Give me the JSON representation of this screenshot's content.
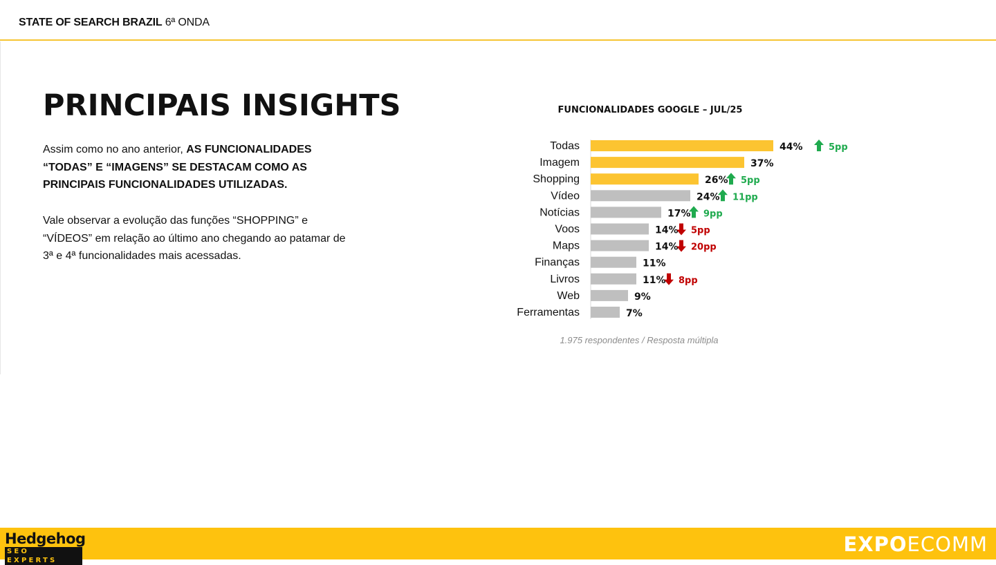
{
  "header": {
    "brand_bold": "STATE OF SEARCH BRAZIL",
    "brand_rest": "6ª ONDA"
  },
  "page": {
    "title": "PRINCIPAIS INSIGHTS"
  },
  "insights": {
    "p1_normal": "Assim como no ano anterior, ",
    "p1_bold": "AS FUNCIONALIDADES “TODAS” E “IMAGENS” SE DESTACAM COMO AS PRINCIPAIS FUNCIONALIDADES UTILIZADAS.",
    "p2": "Vale observar a evolução das funções “SHOPPING” e “VÍDEOS” em relação ao último ano chegando ao patamar de 3ª e 4ª funcionalidades mais acessadas."
  },
  "chart_data": {
    "type": "bar",
    "orientation": "horizontal",
    "title": "FUNCIONALIDADES GOOGLE – JUL/25",
    "categories": [
      "Todas",
      "Imagem",
      "Shopping",
      "Vídeo",
      "Notícias",
      "Voos",
      "Maps",
      "Finanças",
      "Livros",
      "Web",
      "Ferramentas"
    ],
    "values": [
      44,
      37,
      26,
      24,
      17,
      14,
      14,
      11,
      11,
      9,
      7
    ],
    "value_labels": [
      "44%",
      "37%",
      "26%",
      "24%",
      "17%",
      "14%",
      "14%",
      "11%",
      "11%",
      "9%",
      "7%"
    ],
    "highlighted": [
      true,
      true,
      true,
      false,
      false,
      false,
      false,
      false,
      false,
      false,
      false
    ],
    "changes": [
      {
        "direction": "up",
        "label": "5pp"
      },
      null,
      {
        "direction": "up",
        "label": "5pp"
      },
      {
        "direction": "up",
        "label": "11pp"
      },
      {
        "direction": "up",
        "label": "9pp"
      },
      {
        "direction": "down",
        "label": "5pp"
      },
      {
        "direction": "down",
        "label": "20pp"
      },
      null,
      {
        "direction": "down",
        "label": "8pp"
      },
      null,
      null
    ],
    "colors": {
      "highlight": "#fcc431",
      "default": "#bfbfbf",
      "up": "#1faa4e",
      "down": "#c00000"
    },
    "xlim": [
      0,
      44
    ],
    "grid": false,
    "note": "1.975 respondentes / Resposta múltipla"
  },
  "footer": {
    "logo_name": "Hedgehog",
    "logo_tagline": "SEO EXPERTS",
    "partner_a": "EXPO",
    "partner_b": "ECOMM"
  }
}
